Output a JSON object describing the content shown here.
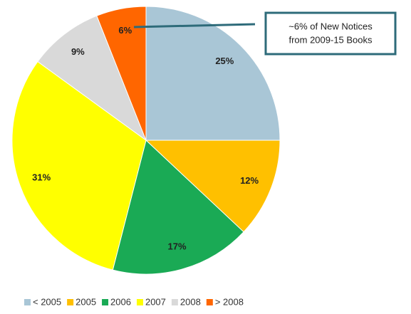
{
  "chart_data": {
    "type": "pie",
    "categories": [
      "< 2005",
      "2005",
      "2006",
      "2007",
      "2008",
      "> 2008"
    ],
    "values": [
      25,
      12,
      17,
      31,
      9,
      6
    ],
    "value_labels": [
      "25%",
      "12%",
      "17%",
      "31%",
      "9%",
      "6%"
    ],
    "colors": [
      "#a9c6d6",
      "#ffc000",
      "#1aaa55",
      "#ffff00",
      "#d9d9d9",
      "#ff6600"
    ],
    "annotation": [
      "~6% of New Notices",
      "from 2009-15 Books"
    ],
    "legend": "bottom"
  }
}
